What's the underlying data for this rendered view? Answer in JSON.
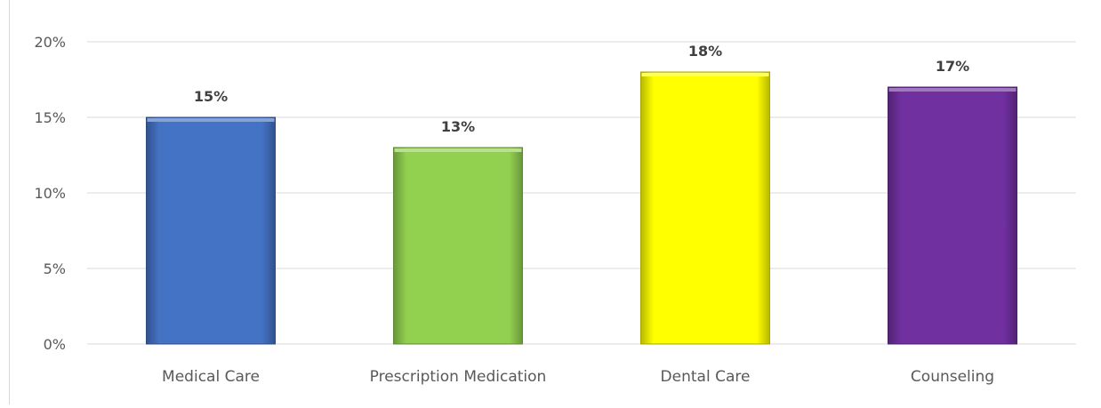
{
  "chart_data": {
    "type": "bar",
    "title": "",
    "xlabel": "",
    "ylabel": "",
    "categories": [
      "Medical Care",
      "Prescription Medication",
      "Dental Care",
      "Counseling"
    ],
    "values": [
      15,
      13,
      18,
      17
    ],
    "value_labels": [
      "15%",
      "13%",
      "18%",
      "17%"
    ],
    "y_ticks": [
      0,
      5,
      10,
      15,
      20
    ],
    "y_tick_labels": [
      "0%",
      "5%",
      "10%",
      "15%",
      "20%"
    ],
    "ylim": [
      0,
      20
    ],
    "y_unit": "%",
    "grid": true,
    "legend": "none",
    "colors": [
      "#4472C4",
      "#92D050",
      "#FFFF00",
      "#7030A0"
    ]
  }
}
